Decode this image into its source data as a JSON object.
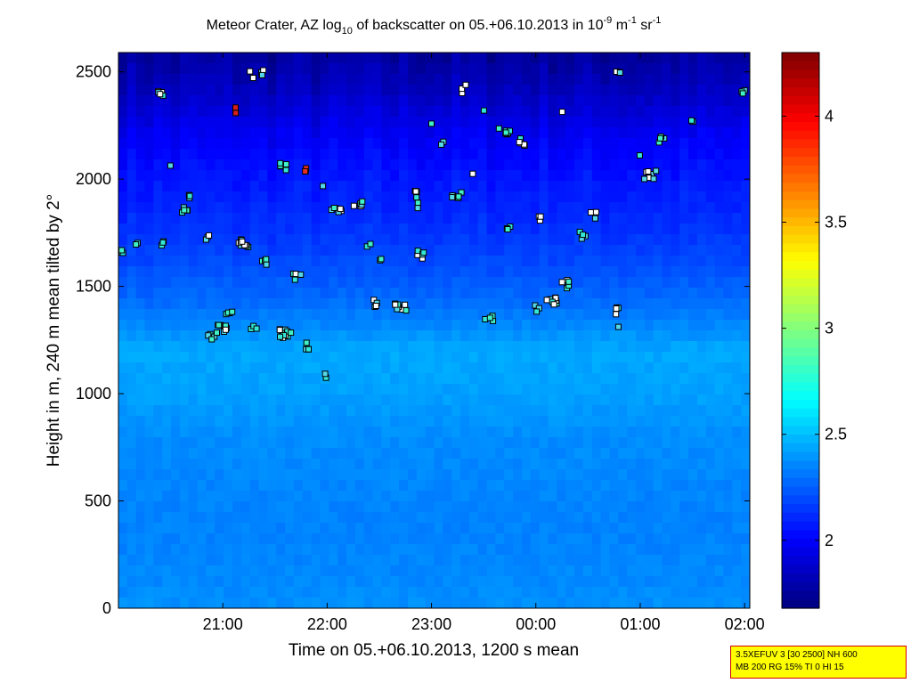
{
  "chart_data": {
    "type": "heatmap",
    "title": {
      "text1": "Meteor Crater, AZ log",
      "sub1": "10",
      "text2": " of backscatter on 05.+06.10.2013 in 10",
      "sup1": "-9",
      "text3": " m",
      "sup2": "-1",
      "text4": " sr",
      "sup3": "-1"
    },
    "xlabel": "Time on 05.+06.10.2013, 1200 s mean",
    "ylabel": "Height in m, 240 m mean tilted by 2°",
    "xlim_hours": [
      20.0,
      26.05
    ],
    "ylim": [
      0,
      2590
    ],
    "x_ticks": [
      {
        "label": "21:00",
        "value": 21
      },
      {
        "label": "22:00",
        "value": 22
      },
      {
        "label": "23:00",
        "value": 23
      },
      {
        "label": "00:00",
        "value": 24
      },
      {
        "label": "01:00",
        "value": 25
      },
      {
        "label": "02:00",
        "value": 26
      }
    ],
    "y_ticks": [
      {
        "label": "0",
        "value": 0
      },
      {
        "label": "500",
        "value": 500
      },
      {
        "label": "1000",
        "value": 1000
      },
      {
        "label": "1500",
        "value": 1500
      },
      {
        "label": "2000",
        "value": 2000
      },
      {
        "label": "2500",
        "value": 2500
      }
    ],
    "colorbar": {
      "range": [
        1.68,
        4.3
      ],
      "ticks": [
        {
          "label": "2",
          "value": 2.0
        },
        {
          "label": "2.5",
          "value": 2.5
        },
        {
          "label": "3",
          "value": 3.0
        },
        {
          "label": "3.5",
          "value": 3.5
        },
        {
          "label": "4",
          "value": 4.0
        }
      ],
      "colormap": "jet"
    },
    "background_profile": [
      {
        "h": 0,
        "v": 2.38
      },
      {
        "h": 120,
        "v": 2.36
      },
      {
        "h": 400,
        "v": 2.34
      },
      {
        "h": 800,
        "v": 2.37
      },
      {
        "h": 1000,
        "v": 2.42
      },
      {
        "h": 1200,
        "v": 2.44
      },
      {
        "h": 1400,
        "v": 2.3
      },
      {
        "h": 1600,
        "v": 2.2
      },
      {
        "h": 1800,
        "v": 2.12
      },
      {
        "h": 2000,
        "v": 2.06
      },
      {
        "h": 2200,
        "v": 1.98
      },
      {
        "h": 2400,
        "v": 1.85
      },
      {
        "h": 2590,
        "v": 1.75
      }
    ],
    "marker_clusters": [
      {
        "t": 20.05,
        "h": 1650,
        "n": 3,
        "c": "cyan"
      },
      {
        "t": 20.18,
        "h": 1690,
        "n": 2,
        "c": "cyan"
      },
      {
        "t": 20.4,
        "h": 2390,
        "n": 5,
        "c": "mix"
      },
      {
        "t": 20.42,
        "h": 1710,
        "n": 3,
        "c": "mix"
      },
      {
        "t": 20.5,
        "h": 2070,
        "n": 1,
        "c": "cyan"
      },
      {
        "t": 20.65,
        "h": 1860,
        "n": 5,
        "c": "cyan"
      },
      {
        "t": 20.7,
        "h": 1930,
        "n": 3,
        "c": "cyan"
      },
      {
        "t": 20.85,
        "h": 1720,
        "n": 3,
        "c": "mix"
      },
      {
        "t": 20.9,
        "h": 1260,
        "n": 4,
        "c": "cyan"
      },
      {
        "t": 21.0,
        "h": 1300,
        "n": 10,
        "c": "mix"
      },
      {
        "t": 21.05,
        "h": 1370,
        "n": 4,
        "c": "cyan"
      },
      {
        "t": 21.1,
        "h": 2320,
        "n": 3,
        "c": "red"
      },
      {
        "t": 21.2,
        "h": 1700,
        "n": 10,
        "c": "mix"
      },
      {
        "t": 21.3,
        "h": 1300,
        "n": 3,
        "c": "cyan"
      },
      {
        "t": 21.28,
        "h": 2490,
        "n": 2,
        "c": "white"
      },
      {
        "t": 21.4,
        "h": 2490,
        "n": 4,
        "c": "mix"
      },
      {
        "t": 21.4,
        "h": 1620,
        "n": 4,
        "c": "cyan"
      },
      {
        "t": 21.6,
        "h": 1280,
        "n": 12,
        "c": "mix"
      },
      {
        "t": 21.6,
        "h": 2060,
        "n": 5,
        "c": "mix"
      },
      {
        "t": 21.8,
        "h": 2040,
        "n": 3,
        "c": "red"
      },
      {
        "t": 21.7,
        "h": 1550,
        "n": 5,
        "c": "mix"
      },
      {
        "t": 21.8,
        "h": 1220,
        "n": 4,
        "c": "cyan"
      },
      {
        "t": 21.95,
        "h": 1980,
        "n": 1,
        "c": "cyan"
      },
      {
        "t": 22.0,
        "h": 1080,
        "n": 2,
        "c": "cyan"
      },
      {
        "t": 22.1,
        "h": 1850,
        "n": 6,
        "c": "mix"
      },
      {
        "t": 22.3,
        "h": 1880,
        "n": 5,
        "c": "mix"
      },
      {
        "t": 22.4,
        "h": 1680,
        "n": 2,
        "c": "cyan"
      },
      {
        "t": 22.5,
        "h": 1620,
        "n": 2,
        "c": "cyan"
      },
      {
        "t": 22.45,
        "h": 1420,
        "n": 4,
        "c": "mix"
      },
      {
        "t": 22.7,
        "h": 1400,
        "n": 8,
        "c": "mix"
      },
      {
        "t": 22.85,
        "h": 1930,
        "n": 4,
        "c": "mix"
      },
      {
        "t": 22.9,
        "h": 1650,
        "n": 5,
        "c": "mix"
      },
      {
        "t": 22.85,
        "h": 1870,
        "n": 2,
        "c": "cyan"
      },
      {
        "t": 23.0,
        "h": 2260,
        "n": 1,
        "c": "cyan"
      },
      {
        "t": 23.1,
        "h": 2180,
        "n": 2,
        "c": "cyan"
      },
      {
        "t": 23.25,
        "h": 1920,
        "n": 6,
        "c": "mix"
      },
      {
        "t": 23.3,
        "h": 2420,
        "n": 3,
        "c": "white"
      },
      {
        "t": 23.4,
        "h": 2010,
        "n": 1,
        "c": "white"
      },
      {
        "t": 23.5,
        "h": 2330,
        "n": 1,
        "c": "cyan"
      },
      {
        "t": 23.55,
        "h": 1350,
        "n": 4,
        "c": "cyan"
      },
      {
        "t": 23.7,
        "h": 2220,
        "n": 8,
        "c": "mix"
      },
      {
        "t": 23.85,
        "h": 2170,
        "n": 6,
        "c": "mix"
      },
      {
        "t": 23.75,
        "h": 1780,
        "n": 3,
        "c": "cyan"
      },
      {
        "t": 24.05,
        "h": 1820,
        "n": 3,
        "c": "white"
      },
      {
        "t": 24.0,
        "h": 1400,
        "n": 3,
        "c": "cyan"
      },
      {
        "t": 24.15,
        "h": 1430,
        "n": 8,
        "c": "mix"
      },
      {
        "t": 24.3,
        "h": 1510,
        "n": 5,
        "c": "mix"
      },
      {
        "t": 24.25,
        "h": 2310,
        "n": 1,
        "c": "white"
      },
      {
        "t": 24.45,
        "h": 1740,
        "n": 4,
        "c": "cyan"
      },
      {
        "t": 24.55,
        "h": 1830,
        "n": 3,
        "c": "mix"
      },
      {
        "t": 24.8,
        "h": 1390,
        "n": 4,
        "c": "mix"
      },
      {
        "t": 24.8,
        "h": 1330,
        "n": 1,
        "c": "cyan"
      },
      {
        "t": 24.8,
        "h": 2490,
        "n": 3,
        "c": "mix"
      },
      {
        "t": 25.0,
        "h": 2110,
        "n": 1,
        "c": "cyan"
      },
      {
        "t": 25.1,
        "h": 2020,
        "n": 7,
        "c": "mix"
      },
      {
        "t": 25.2,
        "h": 2180,
        "n": 4,
        "c": "cyan"
      },
      {
        "t": 25.5,
        "h": 2280,
        "n": 2,
        "c": "cyan"
      },
      {
        "t": 26.0,
        "h": 2410,
        "n": 3,
        "c": "cyan"
      }
    ]
  },
  "infobox": {
    "line1": "3.5XEFUV 3 [30 2500] NH 600",
    "line2": "MB 200 RG 15% TI 0 HI 15"
  }
}
